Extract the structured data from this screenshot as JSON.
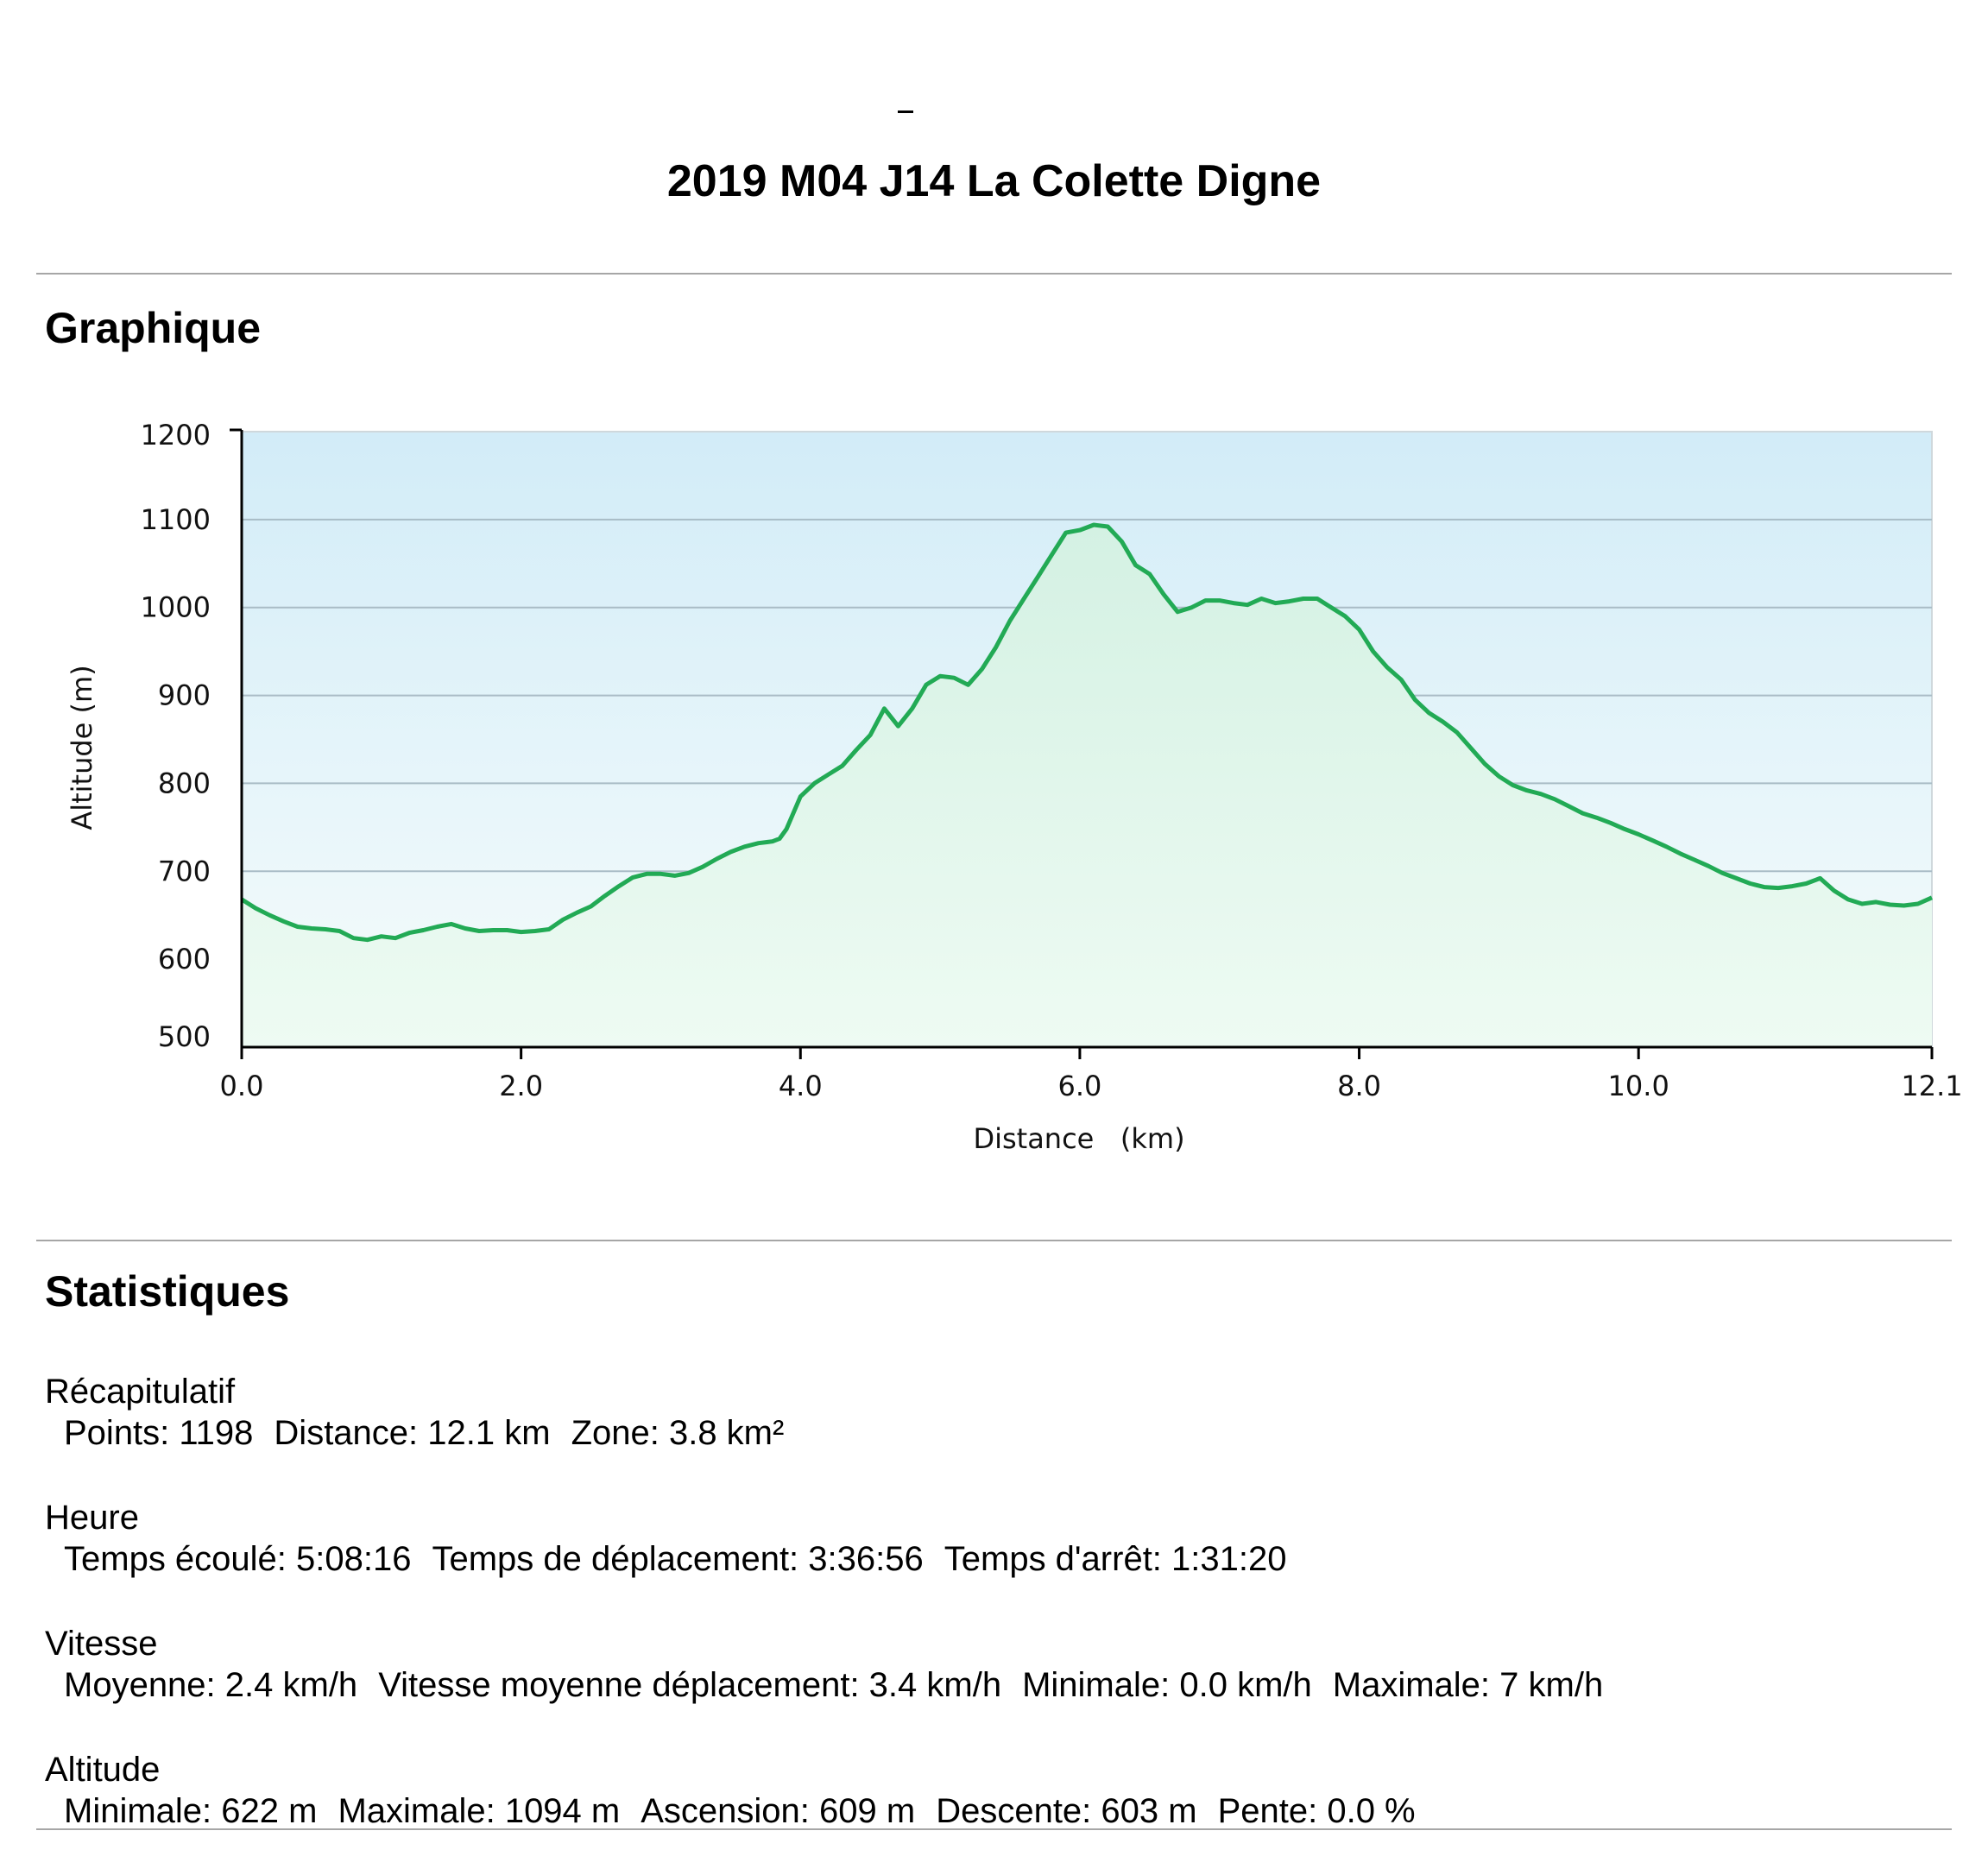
{
  "header": {
    "title": "2019 M04 J14 La Colette Digne"
  },
  "graph_section": {
    "title": "Graphique"
  },
  "stats_section": {
    "title": "Statistiques",
    "groups": [
      {
        "heading": "Récapitulatif",
        "items": [
          "Points: 1198",
          "Distance: 12.1 km",
          "Zone: 3.8 km²"
        ]
      },
      {
        "heading": "Heure",
        "items": [
          "Temps écoulé: 5:08:16",
          "Temps de déplacement: 3:36:56",
          "Temps d'arrêt: 1:31:20"
        ]
      },
      {
        "heading": "Vitesse",
        "items": [
          "Moyenne: 2.4 km/h",
          "Vitesse moyenne déplacement: 3.4 km/h",
          "Minimale: 0.0 km/h",
          "Maximale: 7 km/h"
        ]
      },
      {
        "heading": "Altitude",
        "items": [
          "Minimale: 622 m",
          "Maximale: 1094 m",
          "Ascension: 609 m",
          "Descente: 603 m",
          "Pente: 0.0 %"
        ]
      }
    ]
  },
  "chart_data": {
    "type": "area",
    "xlabel": "Distance   (km)",
    "ylabel": "Altitude (m)",
    "xlim": [
      0.0,
      12.1
    ],
    "ylim": [
      500,
      1200
    ],
    "x_ticks": [
      0.0,
      2.0,
      4.0,
      6.0,
      8.0,
      10.0,
      12.1
    ],
    "x_tick_labels": [
      "0.0",
      "2.0",
      "4.0",
      "6.0",
      "8.0",
      "10.0",
      "12.1"
    ],
    "y_ticks": [
      500,
      600,
      700,
      800,
      900,
      1000,
      1100,
      1200
    ],
    "y_tick_labels": [
      "500",
      "600",
      "700",
      "800",
      "900",
      "1000",
      "1100",
      "1200"
    ],
    "grid": true,
    "colors": {
      "line": "#22aa55",
      "fill_top": "#d2ecf8",
      "fill_area": "#dcf4ea",
      "grid": "#a9bcc6"
    },
    "series": [
      {
        "x": [
          0.0,
          0.1,
          0.2,
          0.3,
          0.4,
          0.5,
          0.6,
          0.7,
          0.8,
          0.9,
          1.0,
          1.1,
          1.2,
          1.3,
          1.4,
          1.5,
          1.6,
          1.7,
          1.8,
          1.9,
          2.0,
          2.1,
          2.2,
          2.3,
          2.4,
          2.5,
          2.6,
          2.7,
          2.8,
          2.9,
          3.0,
          3.1,
          3.2,
          3.3,
          3.4,
          3.5,
          3.6,
          3.7,
          3.8,
          3.85,
          3.9,
          4.0,
          4.1,
          4.2,
          4.3,
          4.4,
          4.5,
          4.6,
          4.7,
          4.8,
          4.9,
          5.0,
          5.1,
          5.2,
          5.3,
          5.4,
          5.5,
          5.6,
          5.7,
          5.8,
          5.9,
          6.0,
          6.1,
          6.2,
          6.3,
          6.4,
          6.5,
          6.6,
          6.7,
          6.8,
          6.9,
          7.0,
          7.1,
          7.2,
          7.3,
          7.4,
          7.5,
          7.6,
          7.7,
          7.8,
          7.9,
          8.0,
          8.1,
          8.2,
          8.3,
          8.4,
          8.5,
          8.6,
          8.7,
          8.8,
          8.9,
          9.0,
          9.1,
          9.2,
          9.3,
          9.4,
          9.5,
          9.6,
          9.7,
          9.8,
          9.9,
          10.0,
          10.1,
          10.2,
          10.3,
          10.4,
          10.5,
          10.6,
          10.7,
          10.8,
          10.9,
          11.0,
          11.1,
          11.2,
          11.3,
          11.4,
          11.5,
          11.6,
          11.7,
          11.8,
          11.9,
          12.0,
          12.1
        ],
        "y": [
          668,
          658,
          650,
          643,
          637,
          635,
          634,
          632,
          624,
          622,
          626,
          624,
          630,
          633,
          637,
          640,
          635,
          632,
          633,
          633,
          631,
          632,
          634,
          645,
          653,
          660,
          672,
          683,
          693,
          697,
          697,
          695,
          698,
          705,
          714,
          722,
          728,
          732,
          734,
          737,
          748,
          785,
          800,
          810,
          820,
          838,
          855,
          885,
          865,
          885,
          912,
          922,
          920,
          912,
          930,
          955,
          985,
          1010,
          1035,
          1060,
          1085,
          1088,
          1094,
          1092,
          1075,
          1048,
          1038,
          1015,
          995,
          1000,
          1008,
          1008,
          1005,
          1003,
          1010,
          1005,
          1007,
          1010,
          1010,
          1000,
          990,
          975,
          950,
          932,
          918,
          895,
          880,
          870,
          858,
          840,
          822,
          808,
          798,
          792,
          788,
          782,
          774,
          766,
          761,
          755,
          748,
          742,
          735,
          728,
          720,
          713,
          706,
          698,
          692,
          686,
          682,
          681,
          683,
          686,
          692,
          678,
          668,
          663,
          665,
          662,
          661,
          663,
          670
        ]
      }
    ]
  }
}
